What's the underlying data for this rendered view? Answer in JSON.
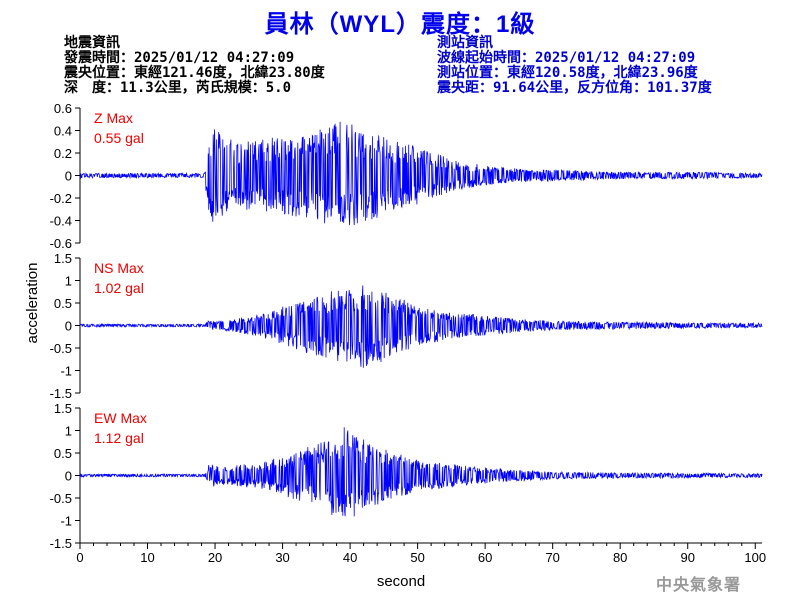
{
  "title": "員林（WYL）震度：1級",
  "quake_info": {
    "header": "地震資訊",
    "time": "發震時間：2025/01/12 04:27:09",
    "location": "震央位置：東經121.46度，北緯23.80度",
    "depth_magnitude": "深　度：11.3公里，芮氏規模：5.0"
  },
  "station_info": {
    "header": "測站資訊",
    "wave_start": "波線起始時間：2025/01/12 04:27:09",
    "location": "測站位置：東經120.58度，北緯23.96度",
    "distance_azimuth": "震央距：91.64公里，反方位角：101.37度"
  },
  "agency": "中央氣象署",
  "colors": {
    "title": "#0000ee",
    "trace": "#0000ff",
    "peak_label": "#ee0000",
    "station_info": "#0000cc"
  },
  "chart_data": {
    "type": "line",
    "xlabel": "second",
    "ylabel": "acceleration",
    "xlim": [
      0,
      101
    ],
    "xticks": [
      0,
      10,
      20,
      30,
      40,
      50,
      60,
      70,
      80,
      90,
      100
    ],
    "panels": [
      {
        "name": "Z",
        "peak_title": "Z Max",
        "peak_value": "0.55 gal",
        "ylim": [
          -0.6,
          0.6
        ],
        "yticks": [
          0.6,
          0.4,
          0.2,
          0,
          -0.2,
          -0.4,
          -0.6
        ],
        "ytick_labels": [
          "0.6",
          "0.4",
          "0.2",
          "0",
          "-0.2",
          "-0.4",
          "-0.6"
        ],
        "series": [
          {
            "envelope": [
              [
                0,
                0.02
              ],
              [
                18.5,
                0.02
              ],
              [
                19,
                0.4
              ],
              [
                20,
                0.42
              ],
              [
                23,
                0.3
              ],
              [
                27,
                0.34
              ],
              [
                30,
                0.35
              ],
              [
                35,
                0.4
              ],
              [
                38,
                0.5
              ],
              [
                41,
                0.45
              ],
              [
                45,
                0.35
              ],
              [
                50,
                0.27
              ],
              [
                55,
                0.14
              ],
              [
                60,
                0.09
              ],
              [
                65,
                0.06
              ],
              [
                70,
                0.05
              ],
              [
                80,
                0.03
              ],
              [
                90,
                0.03
              ],
              [
                101,
                0.02
              ]
            ]
          }
        ]
      },
      {
        "name": "NS",
        "peak_title": "NS Max",
        "peak_value": "1.02 gal",
        "ylim": [
          -1.5,
          1.5
        ],
        "yticks": [
          1.5,
          1,
          0.5,
          0,
          -0.5,
          -1,
          -1.5
        ],
        "ytick_labels": [
          "1.5",
          "1",
          "0.5",
          "0",
          "-0.5",
          "-1",
          "-1.5"
        ],
        "series": [
          {
            "envelope": [
              [
                0,
                0.03
              ],
              [
                18.5,
                0.03
              ],
              [
                19,
                0.1
              ],
              [
                22,
                0.12
              ],
              [
                28,
                0.3
              ],
              [
                33,
                0.6
              ],
              [
                37,
                0.75
              ],
              [
                40,
                0.85
              ],
              [
                43,
                1.0
              ],
              [
                46,
                0.7
              ],
              [
                50,
                0.45
              ],
              [
                55,
                0.3
              ],
              [
                60,
                0.22
              ],
              [
                65,
                0.15
              ],
              [
                70,
                0.1
              ],
              [
                80,
                0.08
              ],
              [
                90,
                0.06
              ],
              [
                101,
                0.05
              ]
            ]
          }
        ]
      },
      {
        "name": "EW",
        "peak_title": "EW Max",
        "peak_value": "1.12 gal",
        "ylim": [
          -1.5,
          1.5
        ],
        "yticks": [
          1.5,
          1,
          0.5,
          0,
          -0.5,
          -1,
          -1.5
        ],
        "ytick_labels": [
          "1.5",
          "1",
          "0.5",
          "0",
          "-0.5",
          "-1",
          "-1.5"
        ],
        "series": [
          {
            "envelope": [
              [
                0,
                0.03
              ],
              [
                18.5,
                0.03
              ],
              [
                19,
                0.25
              ],
              [
                22,
                0.22
              ],
              [
                27,
                0.3
              ],
              [
                32,
                0.55
              ],
              [
                36,
                0.75
              ],
              [
                39,
                1.1
              ],
              [
                42,
                0.8
              ],
              [
                46,
                0.55
              ],
              [
                50,
                0.35
              ],
              [
                55,
                0.25
              ],
              [
                60,
                0.18
              ],
              [
                65,
                0.12
              ],
              [
                70,
                0.08
              ],
              [
                80,
                0.06
              ],
              [
                90,
                0.05
              ],
              [
                101,
                0.04
              ]
            ]
          }
        ]
      }
    ]
  }
}
